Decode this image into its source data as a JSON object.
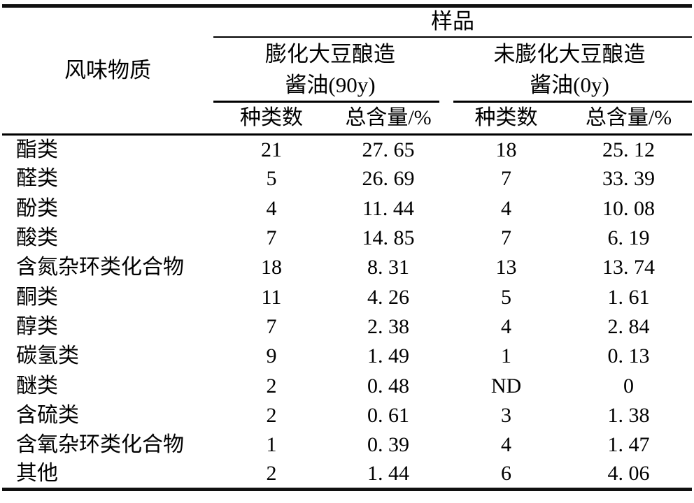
{
  "page": {
    "background": "#ffffff",
    "text_color": "#000000",
    "rule_color": "#101010"
  },
  "table": {
    "corner_header": "风味物质",
    "sample_header": "样品",
    "groups": [
      {
        "line1": "膨化大豆酿造",
        "line2": "酱油(90y)"
      },
      {
        "line1": "未膨化大豆酿造",
        "line2": "酱油(0y)"
      }
    ],
    "subheaders": [
      "种类数",
      "总含量/%",
      "种类数",
      "总含量/%"
    ],
    "rows": [
      {
        "label": "酯类",
        "values": [
          "21",
          "27. 65",
          "18",
          "25. 12"
        ]
      },
      {
        "label": "醛类",
        "values": [
          "5",
          "26. 69",
          "7",
          "33. 39"
        ]
      },
      {
        "label": "酚类",
        "values": [
          "4",
          "11. 44",
          "4",
          "10. 08"
        ]
      },
      {
        "label": "酸类",
        "values": [
          "7",
          "14. 85",
          "7",
          "6. 19"
        ]
      },
      {
        "label": "含氮杂环类化合物",
        "values": [
          "18",
          "8. 31",
          "13",
          "13. 74"
        ]
      },
      {
        "label": "酮类",
        "values": [
          "11",
          "4. 26",
          "5",
          "1. 61"
        ]
      },
      {
        "label": "醇类",
        "values": [
          "7",
          "2. 38",
          "4",
          "2. 84"
        ]
      },
      {
        "label": "碳氢类",
        "values": [
          "9",
          "1. 49",
          "1",
          "0. 13"
        ]
      },
      {
        "label": "醚类",
        "values": [
          "2",
          "0. 48",
          "ND",
          "0"
        ]
      },
      {
        "label": "含硫类",
        "values": [
          "2",
          "0. 61",
          "3",
          "1. 38"
        ]
      },
      {
        "label": "含氧杂环类化合物",
        "values": [
          "1",
          "0. 39",
          "4",
          "1. 47"
        ]
      },
      {
        "label": "其他",
        "values": [
          "2",
          "1. 44",
          "6",
          "4. 06"
        ]
      }
    ]
  }
}
